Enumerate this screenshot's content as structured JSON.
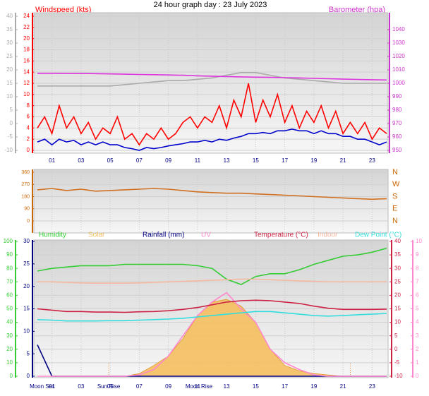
{
  "chart_data": [
    {
      "type": "line",
      "title": "24 hour graph day : 23 July 2023",
      "ylabel": "Windspeed (kts)",
      "y2label": "Barometer (hpa)",
      "x": [
        0,
        1,
        2,
        3,
        4,
        5,
        6,
        7,
        8,
        9,
        10,
        11,
        12,
        13,
        14,
        15,
        16,
        17,
        18,
        19,
        20,
        21,
        22,
        23,
        24
      ],
      "xlim": [
        0,
        24
      ],
      "xticks": [
        {
          "value": 1,
          "label": "01"
        },
        {
          "value": 3,
          "label": "03"
        },
        {
          "value": 5,
          "label": "05"
        },
        {
          "value": 7,
          "label": "07"
        },
        {
          "value": 9,
          "label": "09"
        },
        {
          "value": 11,
          "label": "11"
        },
        {
          "value": 13,
          "label": "13"
        },
        {
          "value": 15,
          "label": "15"
        },
        {
          "value": 17,
          "label": "17"
        },
        {
          "value": 19,
          "label": "19"
        },
        {
          "value": 21,
          "label": "21"
        },
        {
          "value": 23,
          "label": "23"
        }
      ],
      "ylim": [
        0,
        24
      ],
      "yticks": [
        0,
        2,
        4,
        6,
        8,
        10,
        12,
        14,
        16,
        18,
        20,
        22,
        24
      ],
      "y2lim": [
        950,
        1050
      ],
      "y2ticks": [
        950,
        960,
        970,
        980,
        990,
        1000,
        1010,
        1020,
        1030,
        1040
      ],
      "y3lim": [
        -10,
        40
      ],
      "y3ticks": [
        -10,
        -5,
        0,
        5,
        10,
        15,
        20,
        25,
        30,
        35,
        40
      ],
      "axis_colors": {
        "y": "#ff0000",
        "y2": "#cc33cc",
        "y3": "#aaaaaa"
      },
      "grid": true,
      "series": [
        {
          "color": "#aaaaaa",
          "axis": "y3",
          "values": [
            14,
            14,
            14,
            14,
            14,
            14,
            14.5,
            15,
            15.5,
            16,
            16,
            16.5,
            17,
            18,
            19,
            19,
            18,
            17,
            16.5,
            16,
            15.5,
            15,
            15,
            15,
            15
          ]
        },
        {
          "color": "#dd33dd",
          "axis": "y2",
          "values": [
            1007.5,
            1007.5,
            1007.4,
            1007.3,
            1007.2,
            1007,
            1006.8,
            1006.6,
            1006.4,
            1006.2,
            1006,
            1005.6,
            1005.3,
            1005,
            1004.8,
            1004.6,
            1004.4,
            1004.2,
            1004,
            1003.7,
            1003.4,
            1003.1,
            1002.9,
            1002.7,
            1002.5
          ]
        },
        {
          "color": "#ff0000",
          "axis": "y",
          "x": [
            0,
            0.5,
            1,
            1.5,
            2,
            2.5,
            3,
            3.5,
            4,
            4.5,
            5,
            5.5,
            6,
            6.5,
            7,
            7.5,
            8,
            8.5,
            9,
            9.5,
            10,
            10.5,
            11,
            11.5,
            12,
            12.5,
            13,
            13.5,
            14,
            14.5,
            15,
            15.5,
            16,
            16.5,
            17,
            17.5,
            18,
            18.5,
            19,
            19.5,
            20,
            20.5,
            21,
            21.5,
            22,
            22.5,
            23,
            23.5,
            24
          ],
          "values": [
            4,
            6,
            3,
            8,
            4,
            6,
            3,
            5,
            2,
            4,
            3,
            6,
            2,
            3,
            1,
            3,
            2,
            4,
            2,
            3,
            5,
            6,
            4,
            6,
            5,
            8,
            4,
            9,
            6,
            12,
            5,
            9,
            6,
            10,
            5,
            8,
            4,
            7,
            5,
            8,
            4,
            7,
            3,
            5,
            3,
            5,
            2,
            4,
            3
          ]
        },
        {
          "color": "#0000cc",
          "axis": "y",
          "x": [
            0,
            0.5,
            1,
            1.5,
            2,
            2.5,
            3,
            3.5,
            4,
            4.5,
            5,
            5.5,
            6,
            6.5,
            7,
            7.5,
            8,
            8.5,
            9,
            9.5,
            10,
            10.5,
            11,
            11.5,
            12,
            12.5,
            13,
            13.5,
            14,
            14.5,
            15,
            15.5,
            16,
            16.5,
            17,
            17.5,
            18,
            18.5,
            19,
            19.5,
            20,
            20.5,
            21,
            21.5,
            22,
            22.5,
            23,
            23.5,
            24
          ],
          "values": [
            1.5,
            2,
            1,
            2,
            1.5,
            1.8,
            1,
            1.5,
            1,
            1.5,
            1,
            1,
            0.5,
            0.3,
            0,
            0.5,
            0.3,
            0.5,
            0.8,
            1,
            1.2,
            1.5,
            1.5,
            1.8,
            1.5,
            2,
            1.8,
            2.2,
            2.5,
            3,
            3,
            3.2,
            3,
            3.5,
            3.5,
            3.8,
            3.5,
            3.5,
            3,
            3.5,
            3,
            3,
            2.5,
            2.5,
            2,
            2,
            1.5,
            1,
            1.5
          ]
        }
      ]
    },
    {
      "type": "line",
      "x": [
        0,
        1,
        2,
        3,
        4,
        5,
        6,
        7,
        8,
        9,
        10,
        11,
        12,
        13,
        14,
        15,
        16,
        17,
        18,
        19,
        20,
        21,
        22,
        23,
        24
      ],
      "xlim": [
        0,
        24
      ],
      "xticks": [
        1,
        3,
        5,
        7,
        9,
        11,
        13,
        15,
        17,
        19,
        21,
        23
      ],
      "ylim": [
        0,
        360
      ],
      "yticks": [
        0,
        90,
        180,
        270,
        360
      ],
      "y2lim": [
        0,
        360
      ],
      "y2ticks": [
        {
          "value": 360,
          "label": "N"
        },
        {
          "value": 270,
          "label": "W"
        },
        {
          "value": 180,
          "label": "S"
        },
        {
          "value": 90,
          "label": "E"
        },
        {
          "value": 0,
          "label": "N"
        }
      ],
      "axis_colors": {
        "y": "#cc6600",
        "y2": "#cc6600"
      },
      "grid": true,
      "series": [
        {
          "color": "#d07020",
          "axis": "y",
          "values": [
            230,
            240,
            225,
            235,
            220,
            225,
            230,
            235,
            240,
            235,
            225,
            215,
            210,
            205,
            205,
            200,
            195,
            190,
            185,
            180,
            175,
            170,
            165,
            160,
            165
          ]
        }
      ]
    },
    {
      "type": "line",
      "x": [
        0,
        1,
        2,
        3,
        4,
        5,
        6,
        7,
        8,
        9,
        10,
        11,
        12,
        13,
        14,
        15,
        16,
        17,
        18,
        19,
        20,
        21,
        22,
        23,
        24
      ],
      "xlim": [
        0,
        24
      ],
      "xticks": [
        {
          "value": 1,
          "label": "01"
        },
        {
          "value": 3,
          "label": "03"
        },
        {
          "value": 5,
          "label": "05"
        },
        {
          "value": 7,
          "label": "07"
        },
        {
          "value": 9,
          "label": "09"
        },
        {
          "value": 11,
          "label": "11"
        },
        {
          "value": 13,
          "label": "13"
        },
        {
          "value": 15,
          "label": "15"
        },
        {
          "value": 17,
          "label": "17"
        },
        {
          "value": 19,
          "label": "19"
        },
        {
          "value": 21,
          "label": "21"
        },
        {
          "value": 23,
          "label": "23"
        }
      ],
      "ylim": [
        0,
        100
      ],
      "yticks": [
        0,
        10,
        20,
        30,
        40,
        50,
        60,
        70,
        80,
        90,
        100
      ],
      "y3lim": [
        0,
        30
      ],
      "y3ticks": [
        0,
        5,
        10,
        15,
        20,
        25,
        30
      ],
      "y2lim": [
        -10,
        40
      ],
      "y2ticks": [
        -10,
        -5,
        0,
        5,
        10,
        15,
        20,
        25,
        30,
        35,
        40
      ],
      "y4lim": [
        0,
        10
      ],
      "y4ticks": [
        0,
        1,
        2,
        3,
        4,
        5,
        6,
        7,
        8,
        9,
        10
      ],
      "axis_colors": {
        "y": "#33cc33",
        "y3": "#000080",
        "y2": "#cc2244",
        "y4": "#ff88cc"
      },
      "grid": true,
      "events": [
        {
          "x": 0.3,
          "label": "Moon Set",
          "dotted": false
        },
        {
          "x": 4.9,
          "label": "Sun Rise",
          "dotted": true
        },
        {
          "x": 11.1,
          "label": "Moon Rise",
          "dotted": false
        },
        {
          "x": 21.5,
          "label": null,
          "dotted": true
        }
      ],
      "series": [
        {
          "name": "Humidity",
          "color": "#33cc33",
          "axis": "y",
          "values": [
            78,
            80,
            81,
            82,
            82,
            82,
            83,
            83,
            83,
            83,
            83,
            82,
            80,
            72,
            68,
            74,
            76,
            76,
            79,
            83,
            86,
            89,
            90,
            92,
            95
          ]
        },
        {
          "name": "Solar",
          "color": "#f5c060",
          "axis": "y",
          "style": "area",
          "values": [
            0,
            0,
            0,
            0,
            0,
            0,
            0,
            2,
            8,
            15,
            28,
            45,
            55,
            57,
            52,
            40,
            20,
            8,
            4,
            2,
            1,
            0,
            0,
            0,
            0
          ]
        },
        {
          "name": "Rainfall (mm)",
          "color": "#000080",
          "axis": "y3",
          "values": [
            7,
            0,
            0,
            0,
            0,
            0,
            0,
            0,
            0,
            0,
            0,
            0,
            0,
            0,
            0,
            0,
            0,
            0,
            0,
            0,
            0,
            0,
            0,
            0,
            0
          ]
        },
        {
          "name": "UV",
          "color": "#ff88cc",
          "axis": "y4",
          "values": [
            0,
            0,
            0,
            0,
            0,
            0,
            0,
            0.1,
            0.5,
            1.5,
            3,
            4.5,
            5.5,
            6.2,
            5,
            4,
            2,
            1,
            0.5,
            0.1,
            0,
            0,
            0,
            0,
            0
          ]
        },
        {
          "name": "Temperature (°C)",
          "color": "#cc2244",
          "axis": "y2",
          "values": [
            15,
            14.5,
            14,
            14,
            13.8,
            13.8,
            13.7,
            13.9,
            14,
            14.3,
            14.8,
            15.5,
            16.5,
            17.5,
            18,
            18.2,
            18,
            17.5,
            17,
            16,
            15.2,
            14.8,
            14.8,
            14.8,
            14.9
          ]
        },
        {
          "name": "Indoor",
          "color": "#f5b8a0",
          "axis": "y2",
          "values": [
            25,
            25,
            24.8,
            24.6,
            24.5,
            24.5,
            24.5,
            24.6,
            24.8,
            25,
            25.2,
            25.4,
            25.6,
            25.8,
            26,
            26,
            25.8,
            25.6,
            25.4,
            25.2,
            25,
            25,
            25,
            25,
            25
          ]
        },
        {
          "name": "Dew Point (°C)",
          "color": "#33dddd",
          "axis": "y2",
          "values": [
            11,
            10.8,
            10.5,
            10.5,
            10.5,
            10.6,
            10.6,
            10.8,
            11,
            11.2,
            11.5,
            12,
            12.5,
            13,
            13.5,
            14,
            14,
            13.5,
            13,
            12.5,
            12.3,
            12.5,
            12.8,
            13,
            13.3
          ]
        }
      ]
    }
  ]
}
